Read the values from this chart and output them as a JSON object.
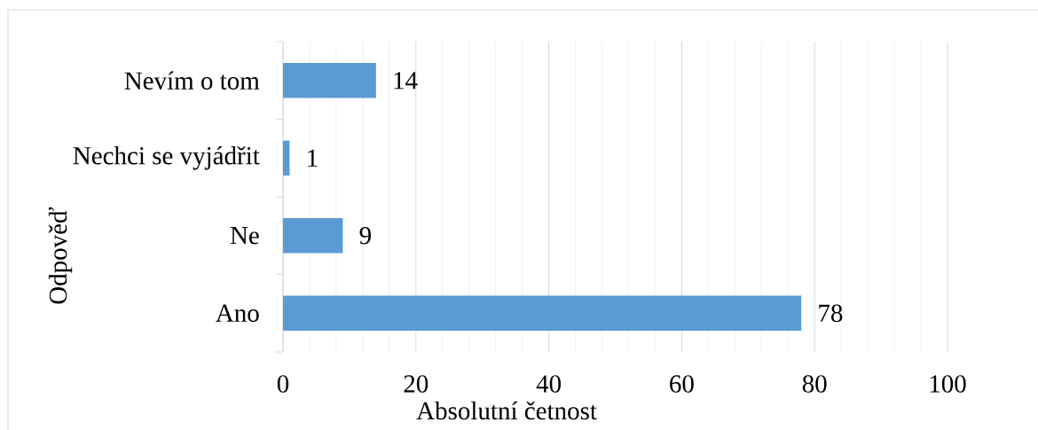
{
  "chart_data": {
    "type": "bar",
    "orientation": "horizontal",
    "xlabel": "Absolutní četnost",
    "ylabel": "Odpověď",
    "categories": [
      "Nevím o tom",
      "Nechci se vyjádřit",
      "Ne",
      "Ano"
    ],
    "values": [
      14,
      1,
      9,
      78
    ],
    "color": "#5b9bd5",
    "xlim": [
      0,
      100
    ],
    "xticks": [
      0,
      {
        "value": 4,
        "label": null
      },
      {
        "value": 8,
        "label": null
      },
      {
        "value": 12,
        "label": null
      },
      {
        "value": 16,
        "label": null
      },
      20,
      {
        "value": 24,
        "label": null
      },
      {
        "value": 28,
        "label": null
      },
      {
        "value": 32,
        "label": null
      },
      {
        "value": 36,
        "label": null
      },
      40,
      {
        "value": 44,
        "label": null
      },
      {
        "value": 48,
        "label": null
      },
      {
        "value": 52,
        "label": null
      },
      {
        "value": 56,
        "label": null
      },
      60,
      {
        "value": 64,
        "label": null
      },
      {
        "value": 68,
        "label": null
      },
      {
        "value": 72,
        "label": null
      },
      {
        "value": 76,
        "label": null
      },
      80,
      {
        "value": 84,
        "label": null
      },
      {
        "value": 88,
        "label": null
      },
      {
        "value": 92,
        "label": null
      },
      {
        "value": 96,
        "label": null
      },
      100
    ],
    "grid": "x",
    "data_labels": true
  }
}
